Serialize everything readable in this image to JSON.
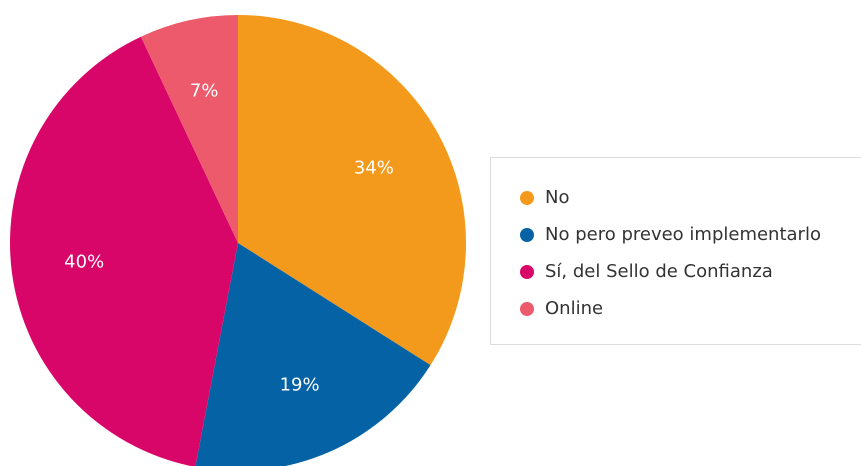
{
  "chart_data": {
    "type": "pie",
    "categories": [
      "No",
      "No pero preveo implementarlo",
      "Sí, del Sello de Confianza",
      "Online"
    ],
    "values": [
      34,
      19,
      40,
      7
    ],
    "value_labels": [
      "34%",
      "19%",
      "40%",
      "7%"
    ],
    "colors": [
      "#f39a1c",
      "#0562a5",
      "#d9066a",
      "#ec5a6b"
    ],
    "legend": "right"
  }
}
